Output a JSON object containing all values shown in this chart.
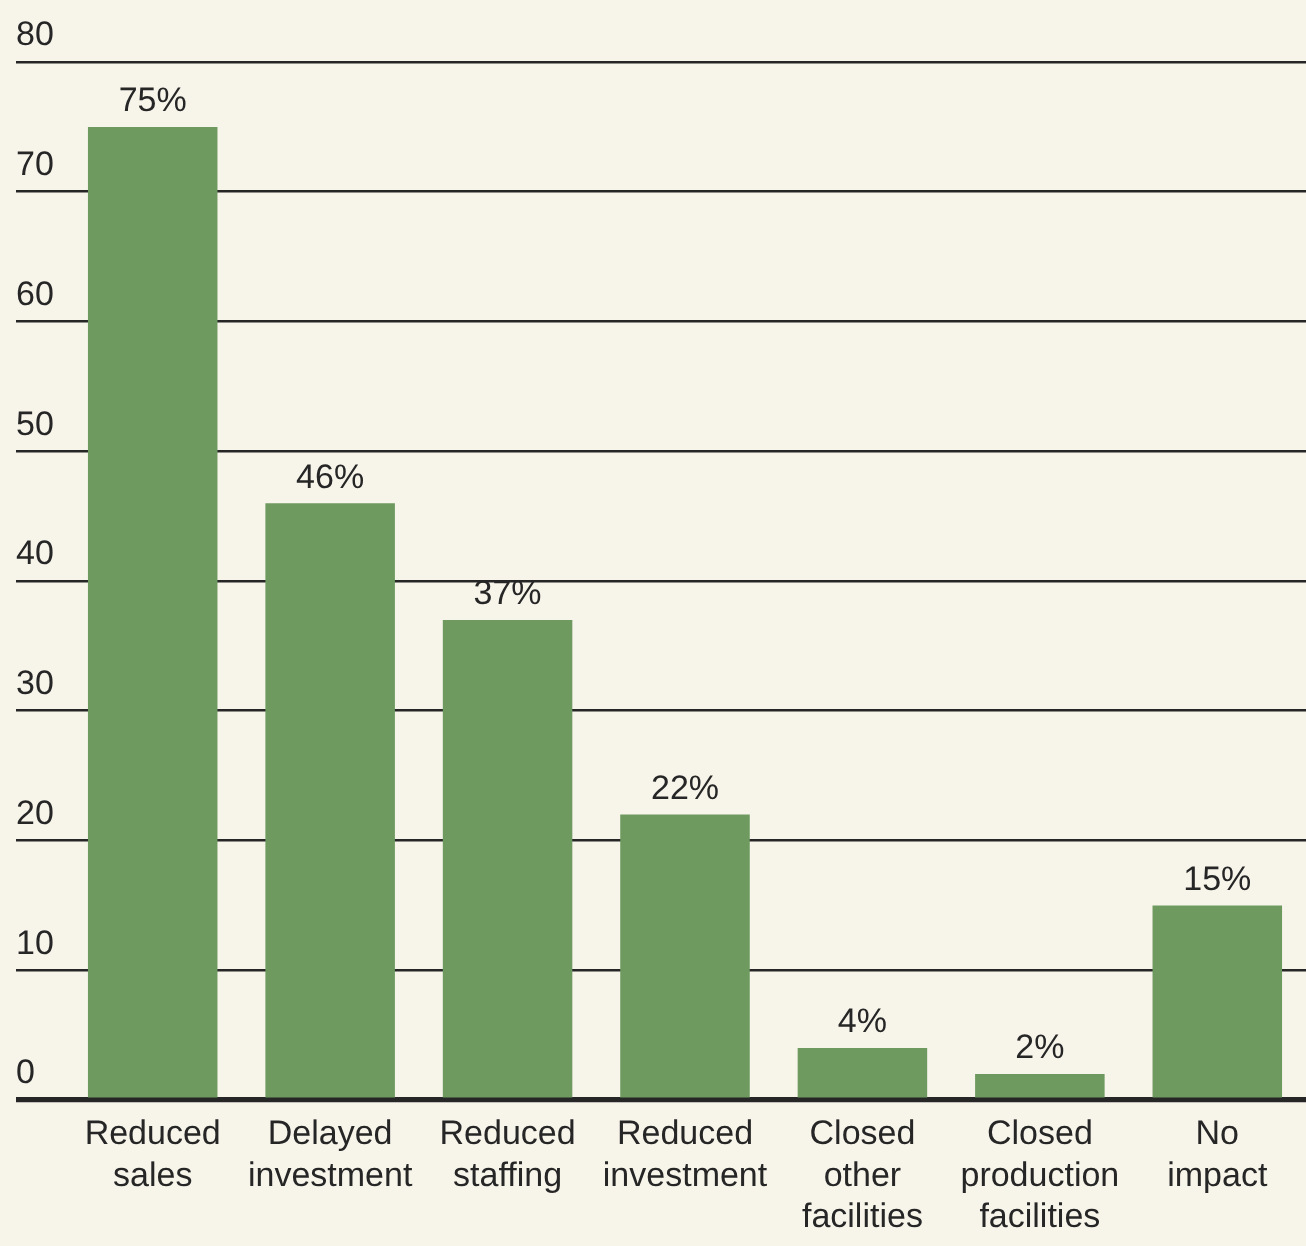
{
  "chart_data": {
    "type": "bar",
    "categories": [
      "Reduced sales",
      "Delayed investment",
      "Reduced staffing",
      "Reduced investment",
      "Closed other facilities",
      "Closed production facilities",
      "No impact"
    ],
    "values": [
      75,
      46,
      37,
      22,
      4,
      2,
      15
    ],
    "value_labels": [
      "75%",
      "46%",
      "37%",
      "22%",
      "4%",
      "2%",
      "15%"
    ],
    "color": "#6e9a60",
    "ylim": [
      0,
      80
    ],
    "yticks": [
      0,
      10,
      20,
      30,
      40,
      50,
      60,
      70,
      80
    ],
    "grid": "y"
  }
}
